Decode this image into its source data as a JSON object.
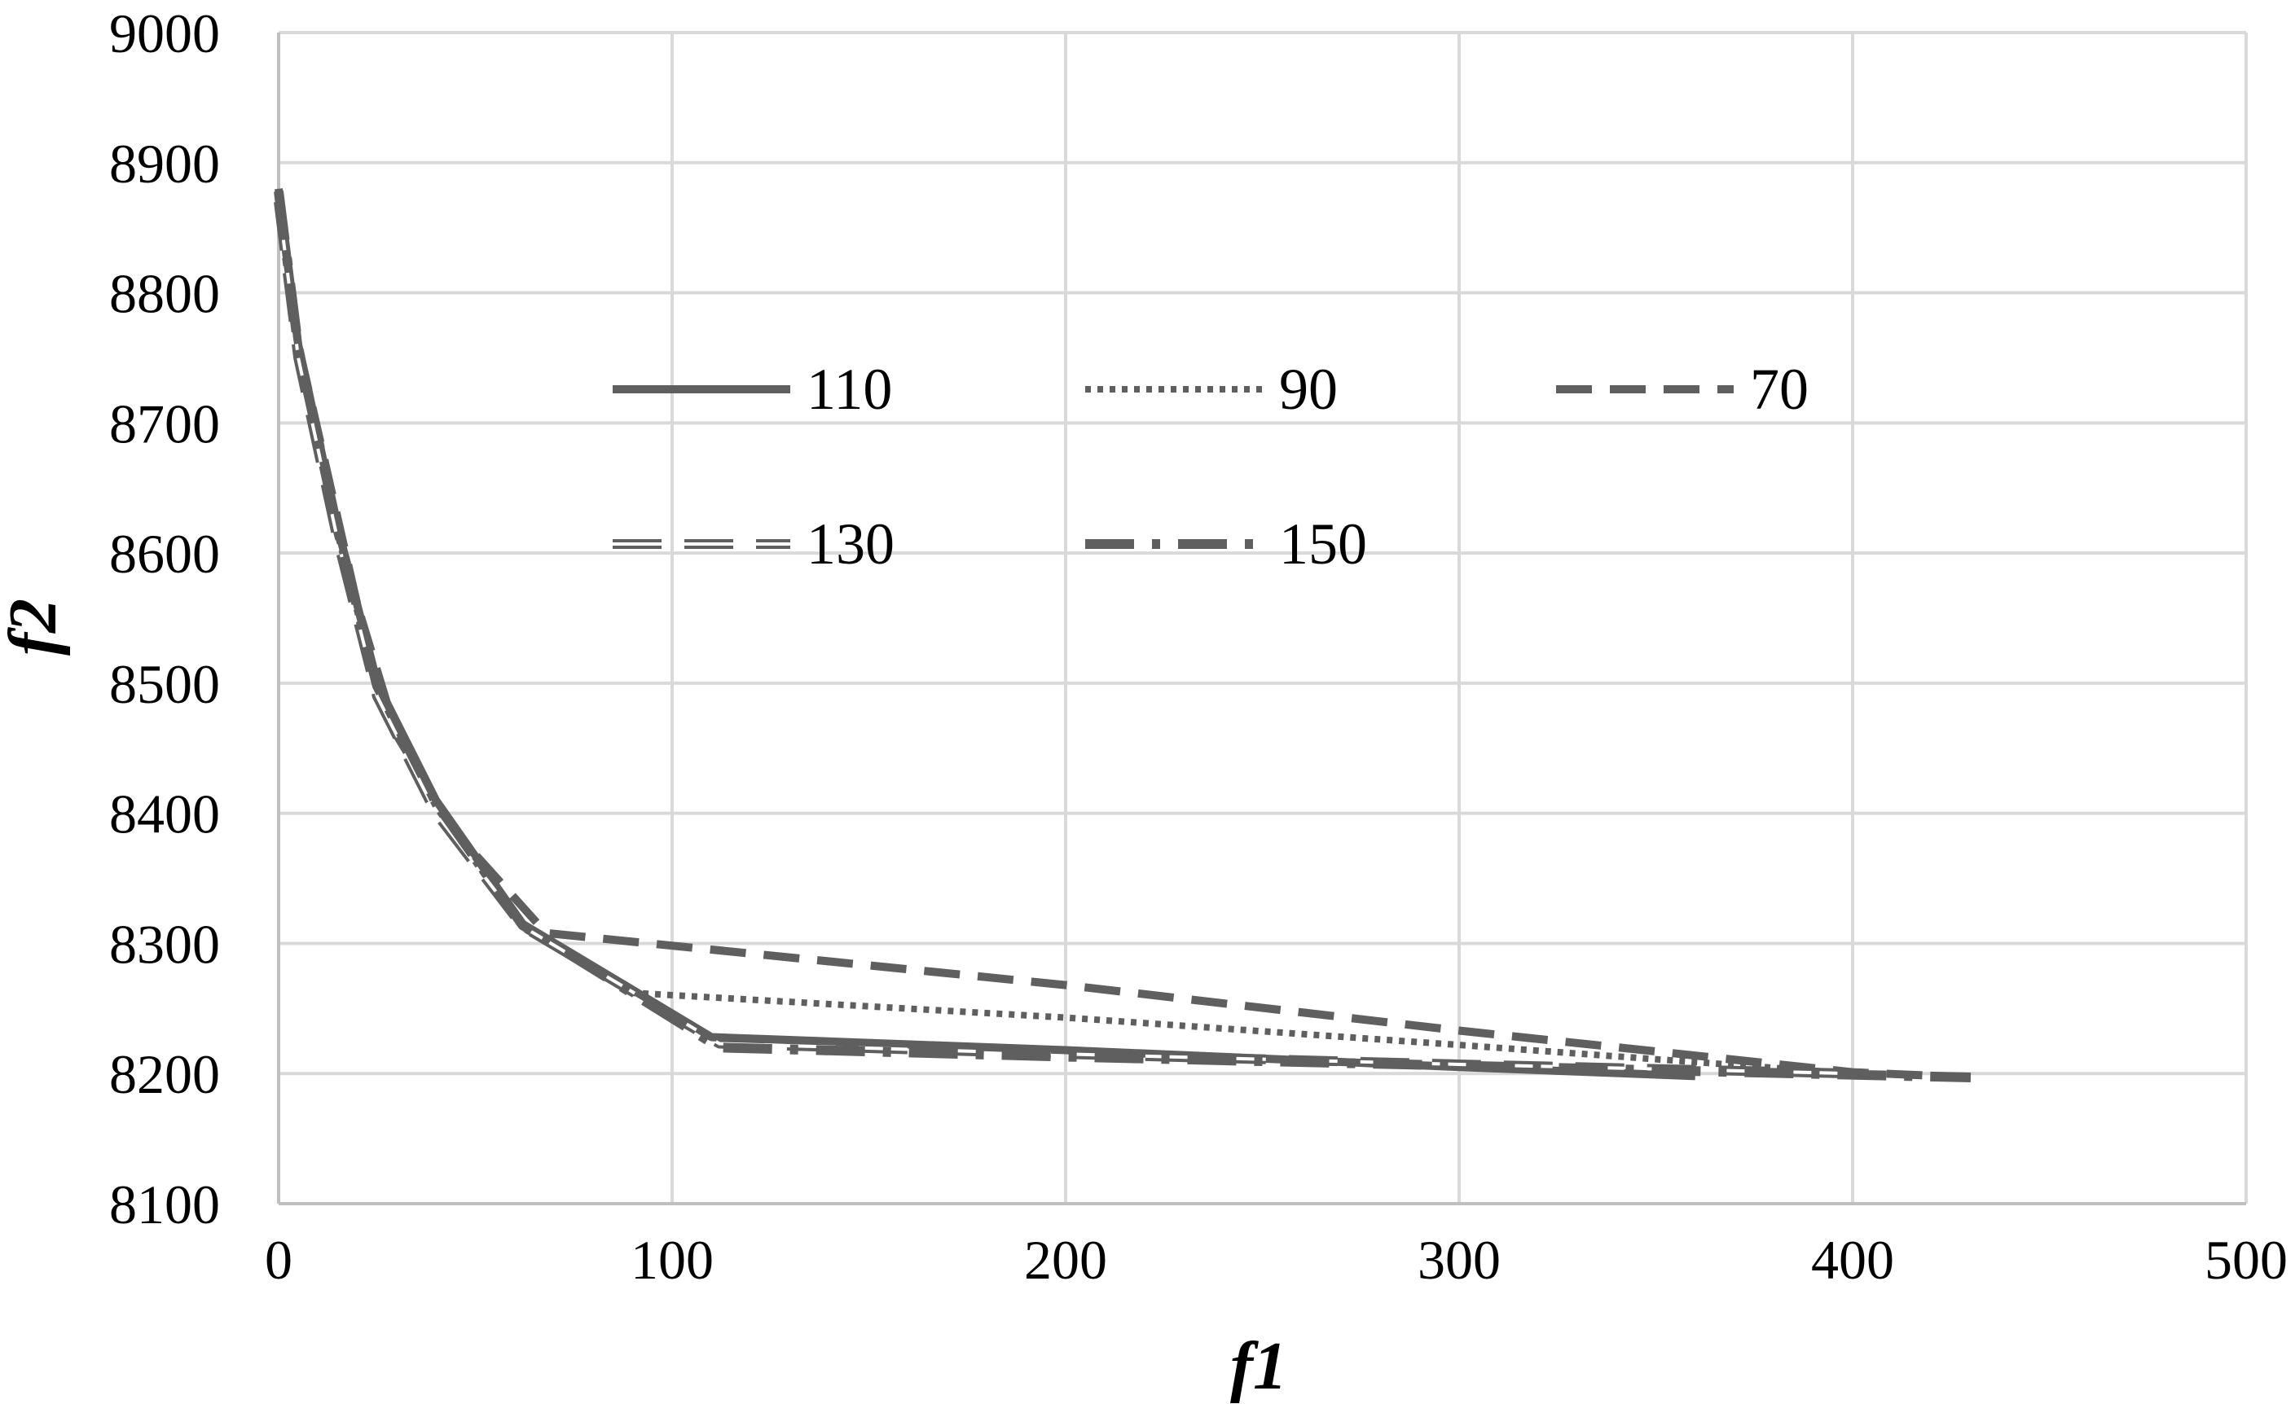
{
  "chart_data": {
    "type": "line",
    "title": "",
    "xlabel": "f1",
    "ylabel": "f2",
    "xlim": [
      0,
      500
    ],
    "ylim": [
      8100,
      9000
    ],
    "x_ticks": [
      0,
      100,
      200,
      300,
      400,
      500
    ],
    "y_ticks": [
      8100,
      8200,
      8300,
      8400,
      8500,
      8600,
      8700,
      8800,
      8900,
      9000
    ],
    "grid": true,
    "legend_position": "inside, upper-middle",
    "colors": {
      "series": "#5f5f5f",
      "grid": "#d9d9d9",
      "axis": "#bfbfbf"
    },
    "series": [
      {
        "name": "110",
        "style": "solid",
        "points": [
          [
            0,
            8880
          ],
          [
            5,
            8760
          ],
          [
            15,
            8620
          ],
          [
            25,
            8500
          ],
          [
            40,
            8410
          ],
          [
            62,
            8315
          ],
          [
            110,
            8228
          ],
          [
            200,
            8218
          ],
          [
            300,
            8205
          ],
          [
            360,
            8198
          ]
        ]
      },
      {
        "name": "90",
        "style": "dotted",
        "points": [
          [
            0,
            8870
          ],
          [
            5,
            8755
          ],
          [
            15,
            8615
          ],
          [
            25,
            8495
          ],
          [
            40,
            8405
          ],
          [
            62,
            8312
          ],
          [
            90,
            8262
          ],
          [
            200,
            8243
          ],
          [
            300,
            8222
          ],
          [
            400,
            8200
          ]
        ]
      },
      {
        "name": "70",
        "style": "dashed",
        "points": [
          [
            0,
            8875
          ],
          [
            5,
            8760
          ],
          [
            20,
            8560
          ],
          [
            30,
            8460
          ],
          [
            45,
            8385
          ],
          [
            68,
            8308
          ],
          [
            200,
            8268
          ],
          [
            300,
            8233
          ],
          [
            400,
            8201
          ],
          [
            430,
            8197
          ]
        ]
      },
      {
        "name": "130",
        "style": "double-dash",
        "points": [
          [
            0,
            8870
          ],
          [
            5,
            8750
          ],
          [
            15,
            8610
          ],
          [
            25,
            8490
          ],
          [
            40,
            8400
          ],
          [
            62,
            8313
          ],
          [
            112,
            8223
          ],
          [
            200,
            8215
          ],
          [
            300,
            8207
          ],
          [
            400,
            8200
          ]
        ]
      },
      {
        "name": "150",
        "style": "dash-dot",
        "points": [
          [
            0,
            8878
          ],
          [
            5,
            8758
          ],
          [
            15,
            8618
          ],
          [
            25,
            8498
          ],
          [
            40,
            8408
          ],
          [
            62,
            8314
          ],
          [
            112,
            8220
          ],
          [
            200,
            8213
          ],
          [
            300,
            8206
          ],
          [
            430,
            8197
          ]
        ]
      }
    ]
  }
}
